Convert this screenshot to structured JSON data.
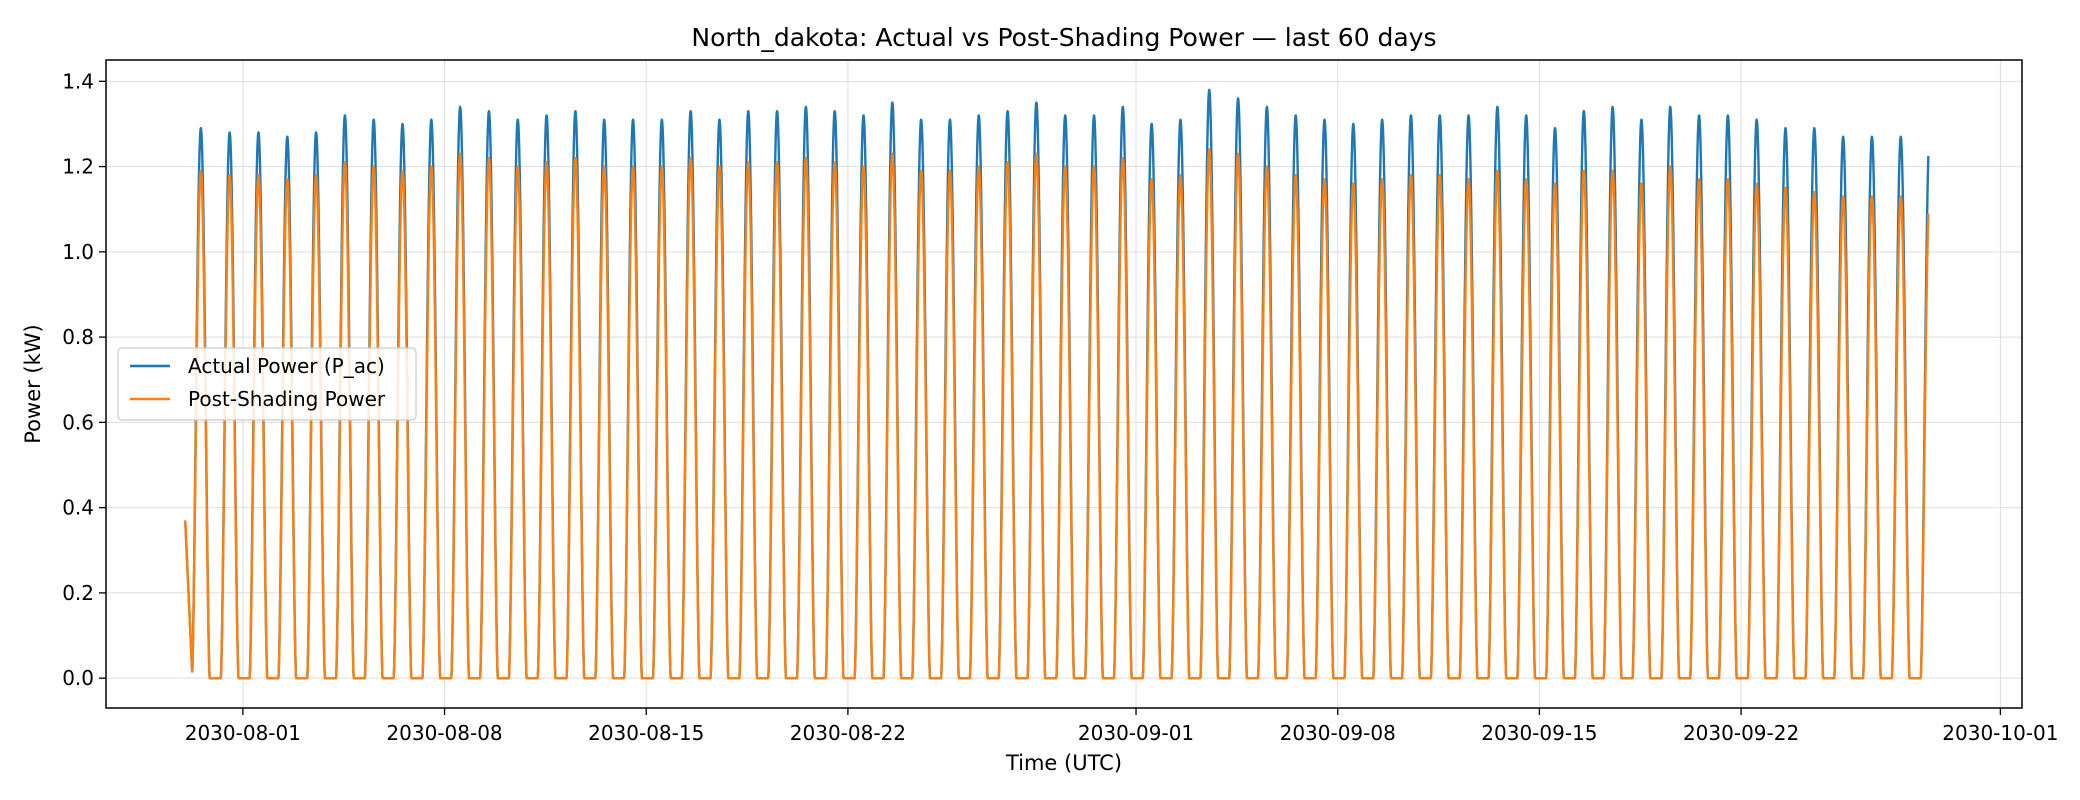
{
  "chart_data": {
    "type": "line",
    "title": "North_dakota: Actual vs Post-Shading Power — last 60 days",
    "xlabel": "Time (UTC)",
    "ylabel": "Power (kW)",
    "x_start": "2030-07-30T00:00:00Z",
    "x_end": "2030-09-28T12:00:00Z",
    "xlim": [
      "2030-07-27T06:00:00Z",
      "2030-10-01T18:00:00Z"
    ],
    "ylim": [
      -0.07,
      1.45
    ],
    "x_tick_labels": [
      "2030-08-01",
      "2030-08-08",
      "2030-08-15",
      "2030-08-22",
      "2030-09-01",
      "2030-09-08",
      "2030-09-15",
      "2030-09-22",
      "2030-10-01"
    ],
    "y_tick_labels": [
      "0.0",
      "0.2",
      "0.4",
      "0.6",
      "0.8",
      "1.0",
      "1.2",
      "1.4"
    ],
    "y_ticks": [
      0.0,
      0.2,
      0.4,
      0.6,
      0.8,
      1.0,
      1.2,
      1.4
    ],
    "grid": true,
    "legend_position": "center-left",
    "series": [
      {
        "name": "Actual Power (P_ac)",
        "color": "#1f77b4",
        "daily_peaks": [
          1.29,
          1.28,
          1.28,
          1.27,
          1.28,
          1.32,
          1.31,
          1.3,
          1.31,
          1.34,
          1.33,
          1.31,
          1.32,
          1.33,
          1.31,
          1.31,
          1.31,
          1.33,
          1.31,
          1.33,
          1.33,
          1.34,
          1.33,
          1.32,
          1.35,
          1.31,
          1.31,
          1.32,
          1.33,
          1.35,
          1.32,
          1.32,
          1.34,
          1.3,
          1.31,
          1.38,
          1.36,
          1.34,
          1.32,
          1.31,
          1.3,
          1.31,
          1.32,
          1.32,
          1.32,
          1.34,
          1.32,
          1.29,
          1.33,
          1.34,
          1.31,
          1.34,
          1.32,
          1.32,
          1.31,
          1.29,
          1.29,
          1.27
        ]
      },
      {
        "name": "Post-Shading Power",
        "color": "#ff7f0e",
        "daily_peaks": [
          1.19,
          1.18,
          1.18,
          1.17,
          1.18,
          1.21,
          1.2,
          1.19,
          1.2,
          1.23,
          1.22,
          1.2,
          1.21,
          1.22,
          1.2,
          1.2,
          1.2,
          1.22,
          1.2,
          1.21,
          1.21,
          1.22,
          1.21,
          1.2,
          1.23,
          1.19,
          1.19,
          1.2,
          1.21,
          1.23,
          1.2,
          1.2,
          1.22,
          1.17,
          1.18,
          1.24,
          1.23,
          1.2,
          1.18,
          1.17,
          1.16,
          1.17,
          1.18,
          1.18,
          1.17,
          1.19,
          1.17,
          1.16,
          1.19,
          1.19,
          1.16,
          1.2,
          1.17,
          1.17,
          1.16,
          1.15,
          1.14,
          1.13
        ]
      }
    ]
  }
}
